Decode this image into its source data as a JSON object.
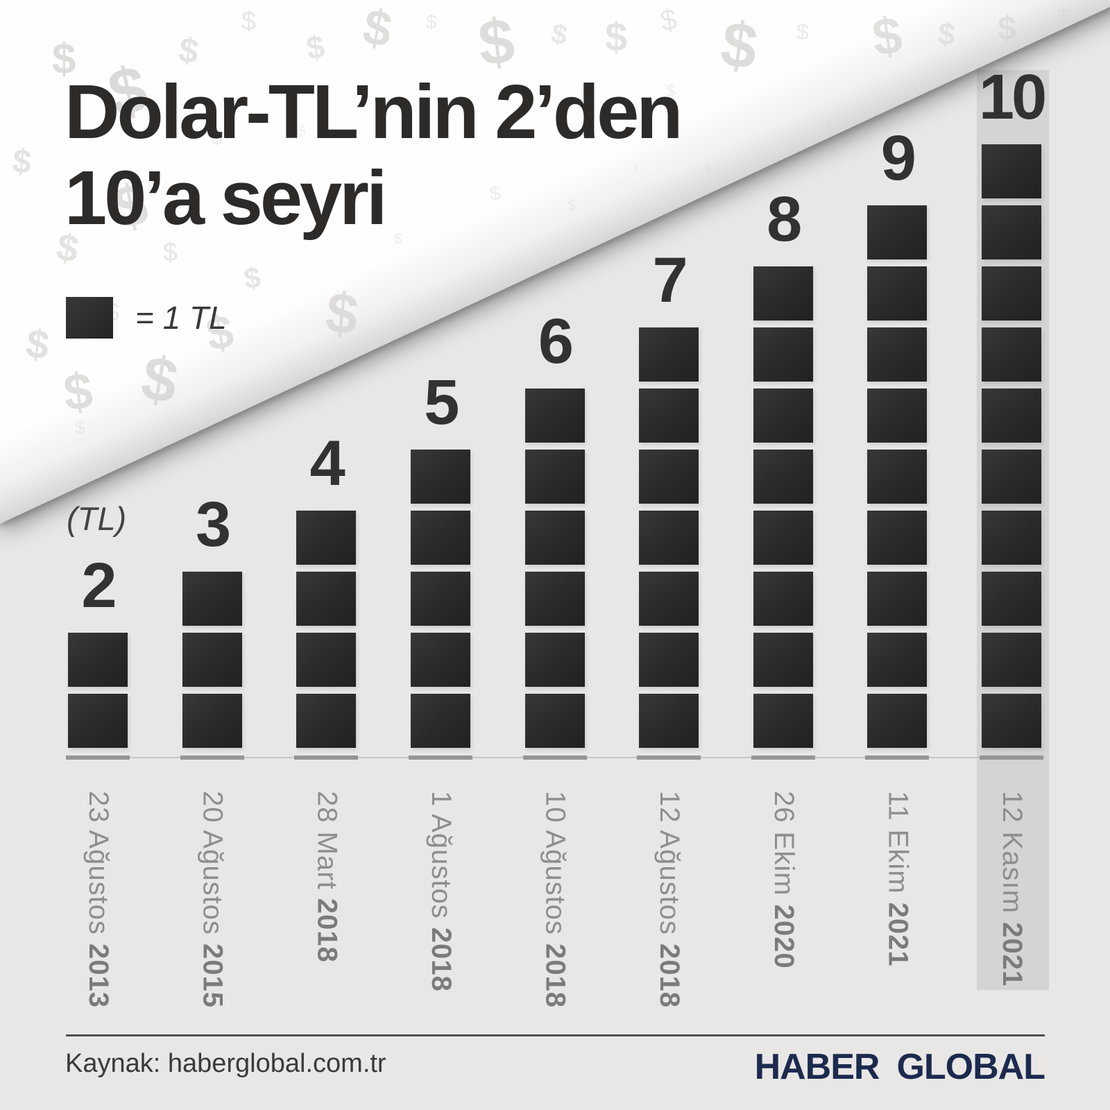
{
  "title": {
    "line1": "Dolar-TL’nin 2’den",
    "line2": "10’a seyri"
  },
  "legend": {
    "symbol": "dark-square",
    "label": "= 1 TL"
  },
  "axis_unit_label": "(TL)",
  "chart_data": {
    "type": "bar",
    "style": "pictogram (1 stacked square = 1 TL)",
    "title": "Dolar-TL’nin 2’den 10’a seyri",
    "ylabel": "(TL)",
    "ylim": [
      0,
      10
    ],
    "grid": false,
    "legend_position": "top-left",
    "legend_label": "= 1 TL",
    "values": [
      2,
      3,
      4,
      5,
      6,
      7,
      8,
      9,
      10
    ],
    "categories": [
      "23 Ağustos 2013",
      "20 Ağustos 2015",
      "28 Mart 2018",
      "1 Ağustos 2018",
      "10 Ağustos 2018",
      "12 Ağustos 2018",
      "26 Ekim 2020",
      "11 Ekim 2021",
      "12 Kasım 2021"
    ],
    "categories_split": [
      {
        "date": "23 Ağustos",
        "year": "2013"
      },
      {
        "date": "20 Ağustos",
        "year": "2015"
      },
      {
        "date": "28 Mart",
        "year": "2018"
      },
      {
        "date": "1 Ağustos",
        "year": "2018"
      },
      {
        "date": "10 Ağustos",
        "year": "2018"
      },
      {
        "date": "12 Ağustos",
        "year": "2018"
      },
      {
        "date": "26 Ekim",
        "year": "2020"
      },
      {
        "date": "11 Ekim",
        "year": "2021"
      },
      {
        "date": "12 Kasım",
        "year": "2021"
      }
    ],
    "highlight_index": 8
  },
  "watermark": {
    "glyph": "$"
  },
  "footer": {
    "source": "Kaynak: haberglobal.com.tr",
    "logo": {
      "part1": "HABER",
      "part2": "GLOBAL"
    }
  },
  "colors": {
    "background_gray": "#e8e7e5",
    "paper_white": "#ffffff",
    "square_dark": "#2b2928",
    "highlight_band": "#d5d4d2",
    "date_gray": "#8f8e8c",
    "logo_navy": "#1b2a4e",
    "logo_red": "#e5332d"
  }
}
